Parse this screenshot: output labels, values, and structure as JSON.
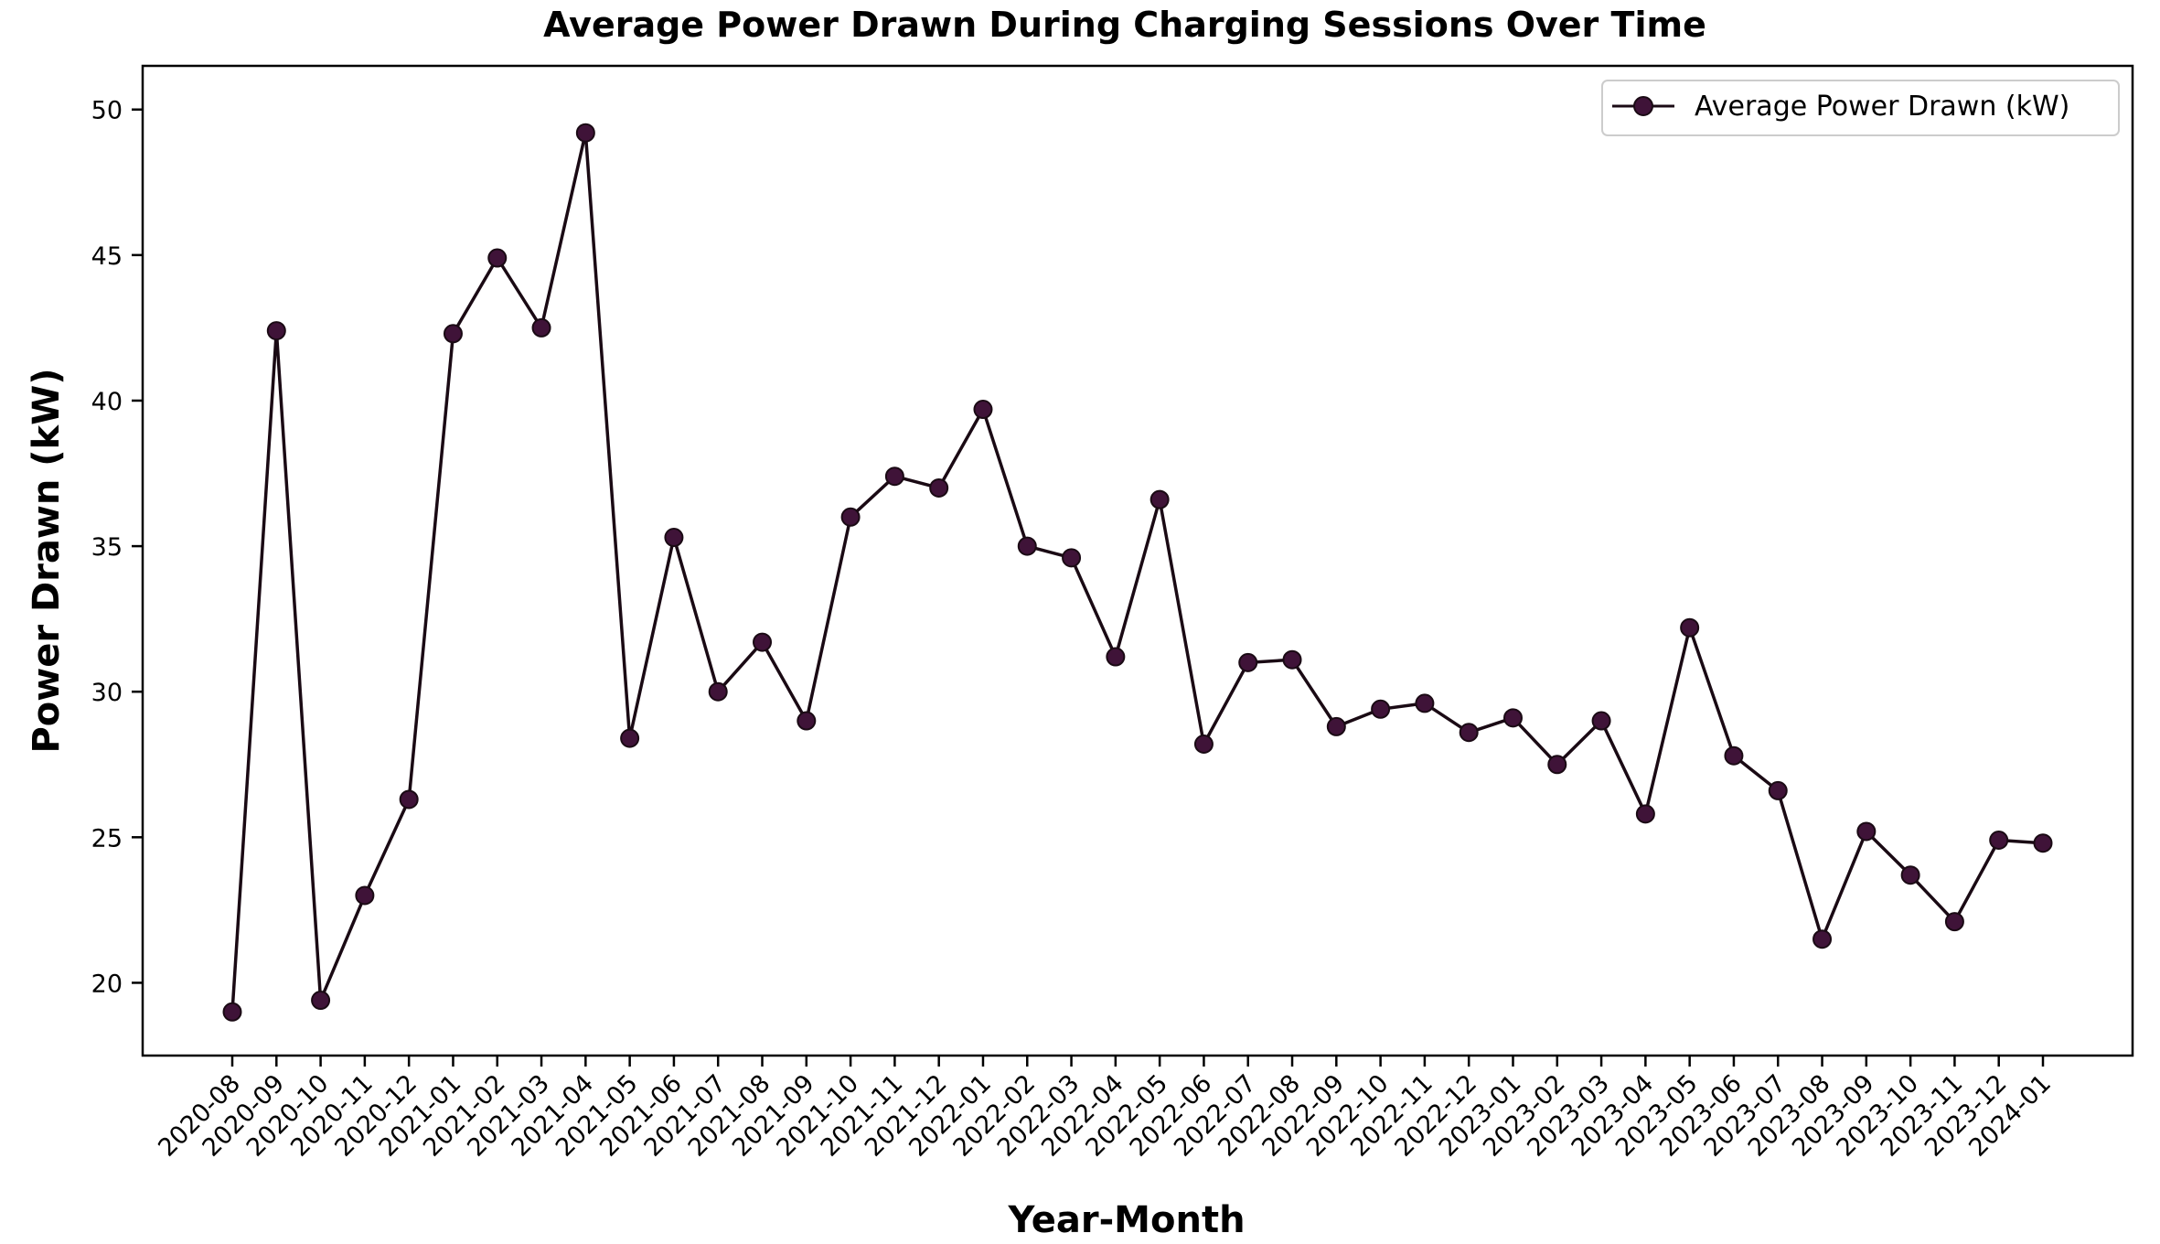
{
  "chart_data": {
    "type": "line",
    "title": "Average Power Drawn During Charging Sessions Over Time",
    "xlabel": "Year-Month",
    "ylabel": "Power Drawn (kW)",
    "ylim": [
      17.5,
      51.5
    ],
    "yticks": [
      20,
      25,
      30,
      35,
      40,
      45,
      50
    ],
    "grid": false,
    "legend_position": "top-right",
    "line_color": "#1a0a14",
    "marker_color": "#3f1338",
    "categories": [
      "2020-08",
      "2020-09",
      "2020-10",
      "2020-11",
      "2020-12",
      "2021-01",
      "2021-02",
      "2021-03",
      "2021-04",
      "2021-05",
      "2021-06",
      "2021-07",
      "2021-08",
      "2021-09",
      "2021-10",
      "2021-11",
      "2021-12",
      "2022-01",
      "2022-02",
      "2022-03",
      "2022-04",
      "2022-05",
      "2022-06",
      "2022-07",
      "2022-08",
      "2022-09",
      "2022-10",
      "2022-11",
      "2022-12",
      "2023-01",
      "2023-02",
      "2023-03",
      "2023-04",
      "2023-05",
      "2023-06",
      "2023-07",
      "2023-08",
      "2023-09",
      "2023-10",
      "2023-11",
      "2023-12",
      "2024-01"
    ],
    "series": [
      {
        "name": "Average Power Drawn (kW)",
        "values": [
          19.0,
          42.4,
          19.4,
          23.0,
          26.3,
          42.3,
          44.9,
          42.5,
          49.2,
          28.4,
          35.3,
          30.0,
          31.7,
          29.0,
          36.0,
          37.4,
          37.0,
          39.7,
          35.0,
          34.6,
          31.2,
          36.6,
          28.2,
          31.0,
          31.1,
          28.8,
          29.4,
          29.6,
          28.6,
          29.1,
          27.5,
          29.0,
          25.8,
          32.2,
          27.8,
          26.6,
          21.5,
          25.2,
          23.7,
          22.1,
          24.9,
          24.8
        ]
      }
    ]
  }
}
